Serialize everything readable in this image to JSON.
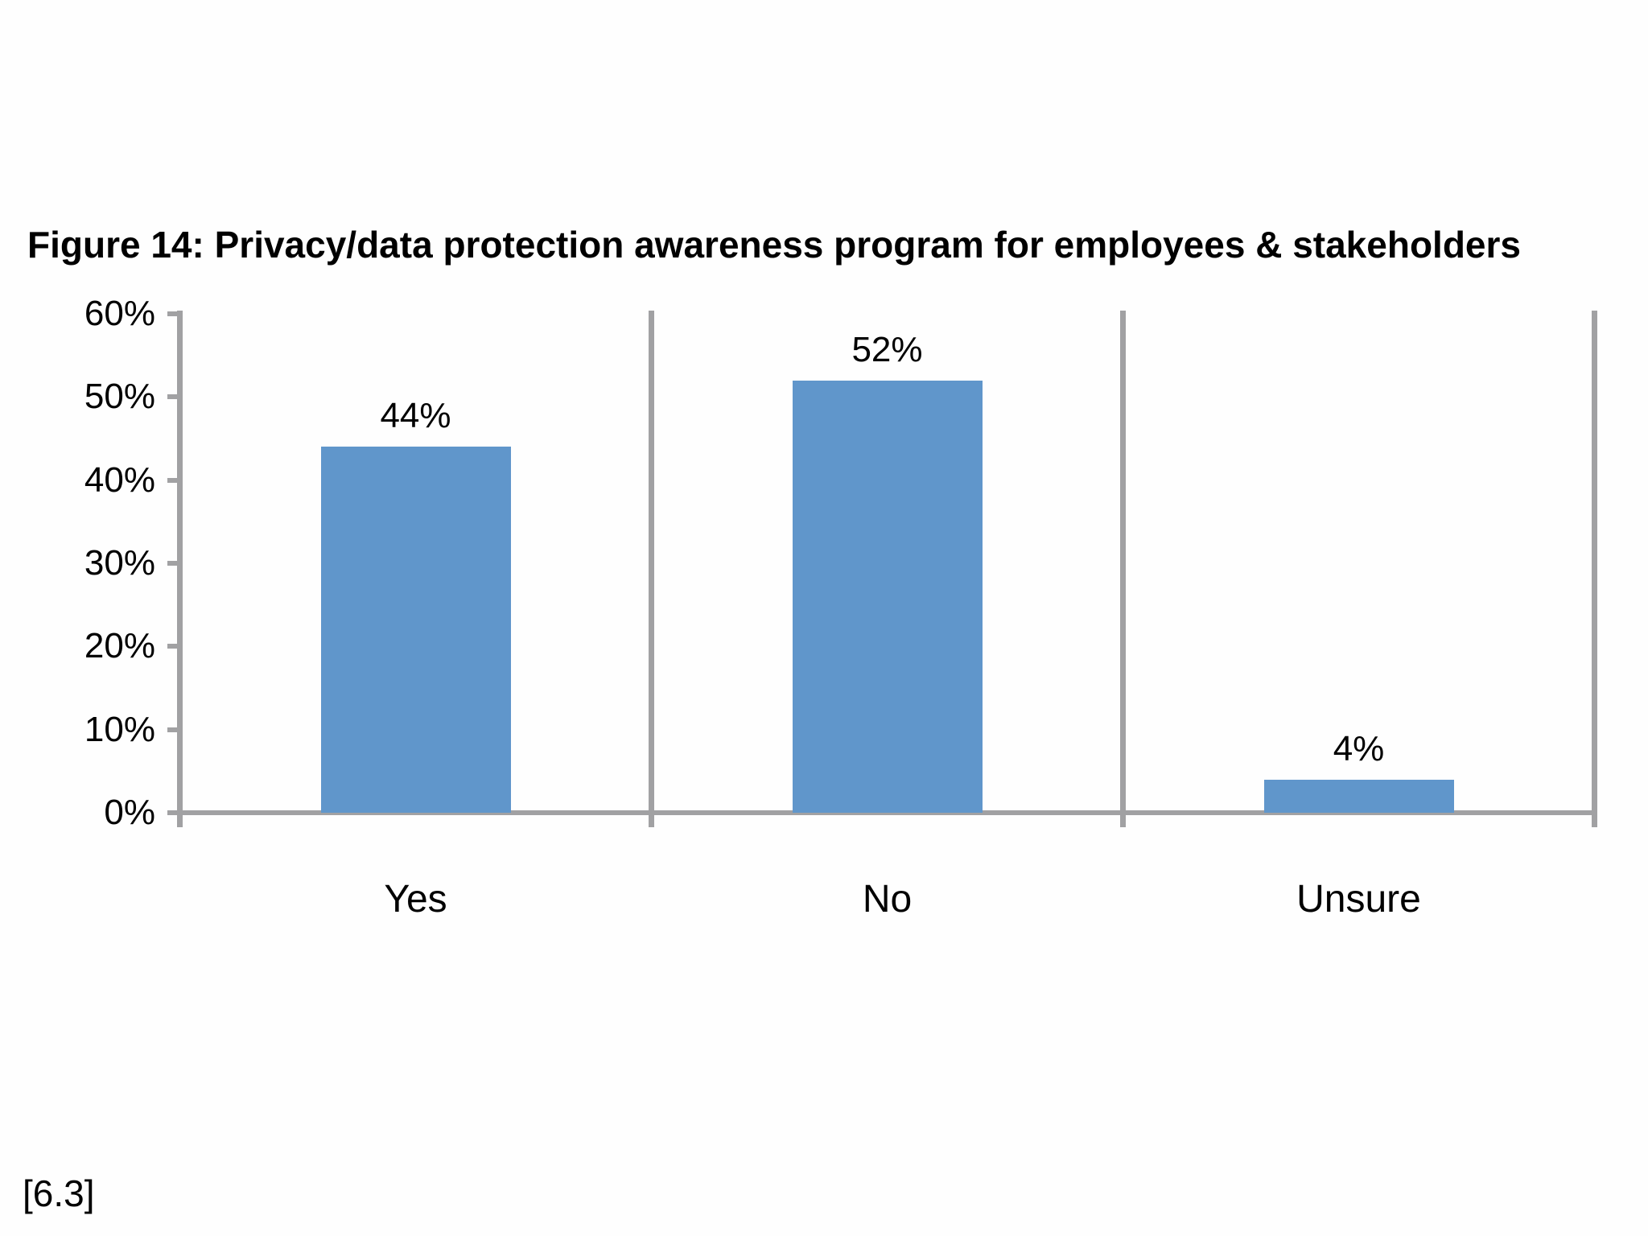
{
  "figure": {
    "title": "Figure 14: Privacy/data protection awareness program for employees & stakeholders",
    "footnote": "[6.3]"
  },
  "chart_data": {
    "type": "bar",
    "title": "Figure 14: Privacy/data protection awareness program for employees & stakeholders",
    "categories": [
      "Yes",
      "No",
      "Unsure"
    ],
    "values": [
      44,
      52,
      4
    ],
    "value_labels": [
      "44%",
      "52%",
      "4%"
    ],
    "xlabel": "",
    "ylabel": "",
    "ylim": [
      0,
      60
    ],
    "ytick_step": 10,
    "ytick_labels": [
      "0%",
      "10%",
      "20%",
      "30%",
      "40%",
      "50%",
      "60%"
    ],
    "grid": false,
    "legend": false,
    "panel_dividers": true,
    "colors": {
      "bar": "#6096CB",
      "axis": "#a1a1a3",
      "text": "#000000",
      "background": "#fefefe"
    }
  }
}
